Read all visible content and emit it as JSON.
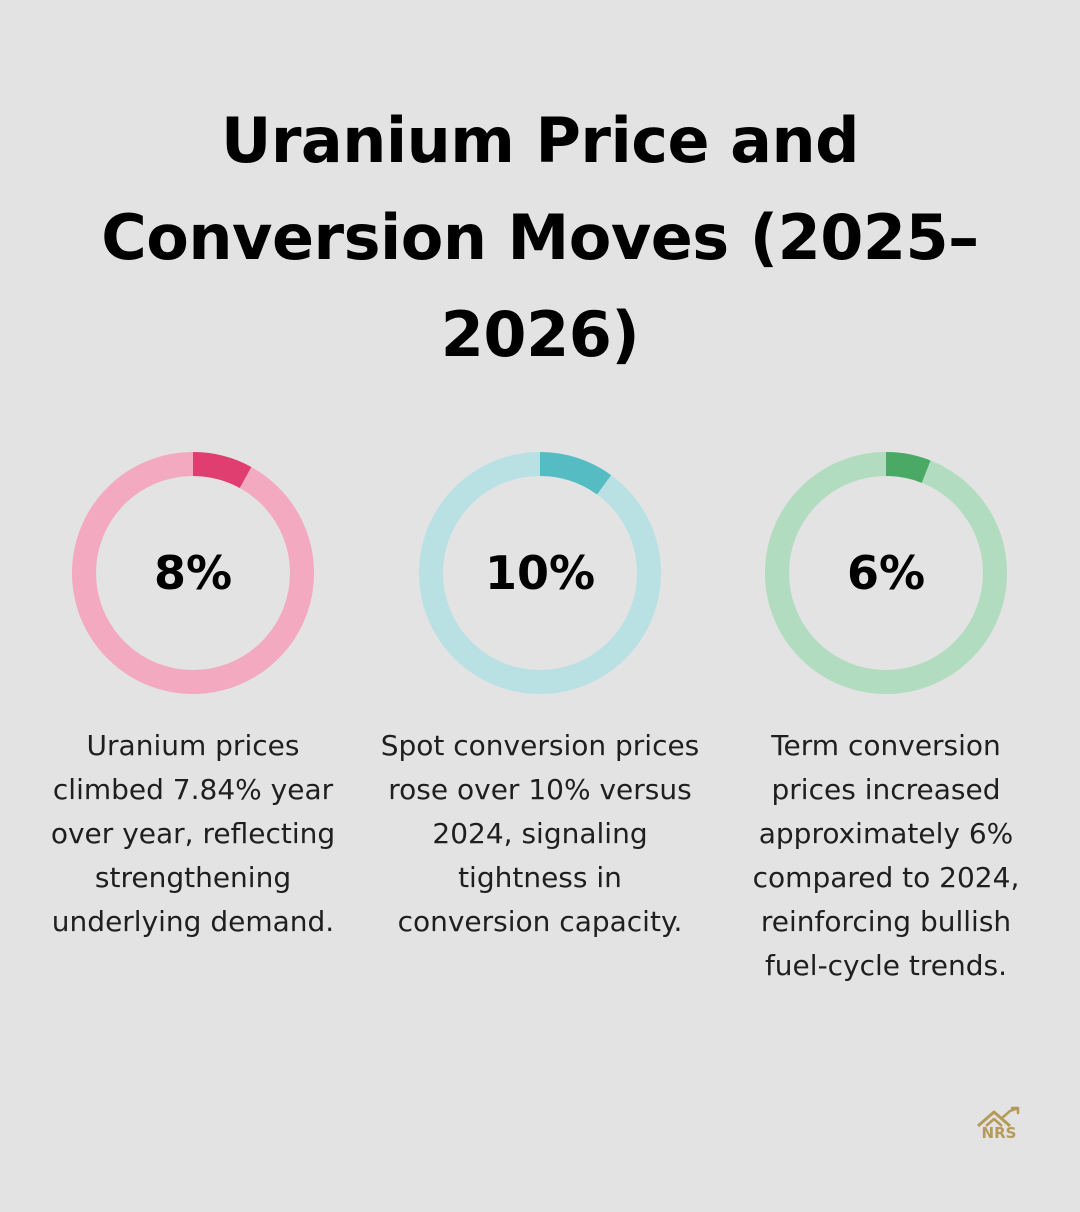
{
  "title": "Uranium Price and Conversion Moves (2025–2026)",
  "stats": [
    {
      "value_label": "8%",
      "fraction": 0.08,
      "track_color": "#f3a9bf",
      "fill_color": "#e03d70",
      "description": "Uranium prices climbed 7.84% year over year, reflecting strengthening underlying demand."
    },
    {
      "value_label": "10%",
      "fraction": 0.1,
      "track_color": "#b9e1e4",
      "fill_color": "#56bcc4",
      "description": "Spot conversion prices rose over 10% versus 2024, signaling tightness in conversion capacity."
    },
    {
      "value_label": "6%",
      "fraction": 0.06,
      "track_color": "#b1dcc0",
      "fill_color": "#4aa965",
      "description": "Term conversion prices increased approximately 6% compared to 2024, reinforcing bullish fuel-cycle trends."
    }
  ],
  "logo": {
    "text": "NRS",
    "icon": "house-chart-icon",
    "color": "#b59a5a"
  }
}
